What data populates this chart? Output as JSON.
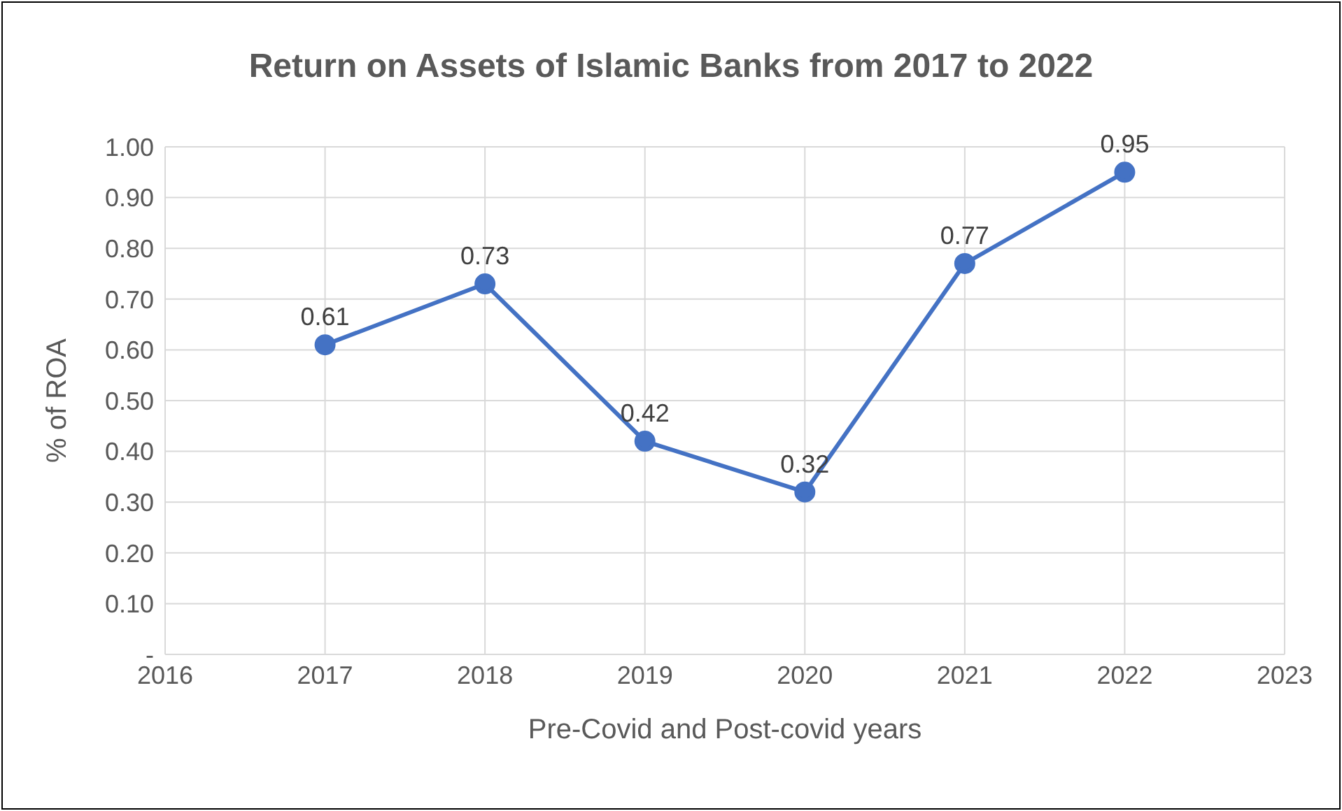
{
  "chart_data": {
    "type": "line",
    "title": "Return on Assets of Islamic Banks from 2017 to 2022",
    "xlabel": "Pre-Covid and Post-covid years",
    "ylabel": "% of ROA",
    "x": [
      2017,
      2018,
      2019,
      2020,
      2021,
      2022
    ],
    "series": [
      {
        "color": "#4472c4",
        "values": [
          0.61,
          0.73,
          0.42,
          0.32,
          0.77,
          0.95
        ]
      }
    ],
    "xlim": [
      2016,
      2023
    ],
    "xticks": [
      2016,
      2017,
      2018,
      2019,
      2020,
      2021,
      2022,
      2023
    ],
    "ylim": [
      0,
      1
    ],
    "yticks": [
      {
        "value": 0,
        "label": "-"
      },
      {
        "value": 0.1,
        "label": "0.10"
      },
      {
        "value": 0.2,
        "label": "0.20"
      },
      {
        "value": 0.3,
        "label": "0.30"
      },
      {
        "value": 0.4,
        "label": "0.40"
      },
      {
        "value": 0.5,
        "label": "0.50"
      },
      {
        "value": 0.6,
        "label": "0.60"
      },
      {
        "value": 0.7,
        "label": "0.70"
      },
      {
        "value": 0.8,
        "label": "0.80"
      },
      {
        "value": 0.9,
        "label": "0.90"
      },
      {
        "value": 1,
        "label": "1.00"
      }
    ],
    "grid": true,
    "marker": "circle",
    "line_style": "solid",
    "data_labels": true,
    "legend": false
  }
}
